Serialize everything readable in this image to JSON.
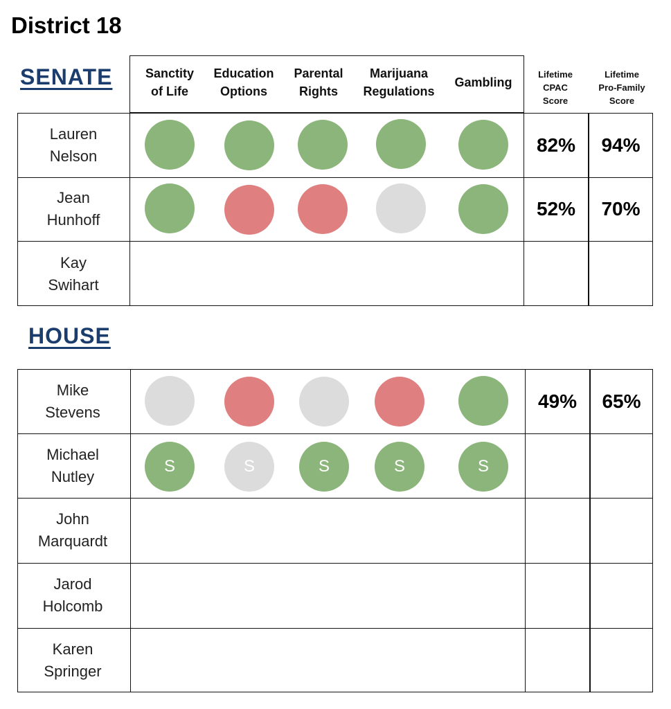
{
  "title": "District 18",
  "senate": {
    "heading": "SENATE",
    "columns": [
      {
        "line1": "Sanctity",
        "line2": "of Life"
      },
      {
        "line1": "Education",
        "line2": "Options"
      },
      {
        "line1": "Parental",
        "line2": "Rights"
      },
      {
        "line1": "Marijuana",
        "line2": "Regulations"
      },
      {
        "line1": "Gambling",
        "line2": ""
      }
    ],
    "cpac_header": {
      "line1": "Lifetime",
      "line2": "CPAC",
      "line3": "Score"
    },
    "profamily_header": {
      "line1": "Lifetime",
      "line2": "Pro-Family",
      "line3": "Score"
    },
    "rows": [
      {
        "first": "Lauren",
        "last": "Nelson",
        "votes": [
          "green",
          "green",
          "green",
          "green",
          "green"
        ],
        "marks": [
          "",
          "",
          "",
          "",
          ""
        ],
        "cpac": "82%",
        "profamily": "94%"
      },
      {
        "first": "Jean",
        "last": "Hunhoff",
        "votes": [
          "green",
          "red",
          "red",
          "gray",
          "green"
        ],
        "marks": [
          "",
          "",
          "",
          "",
          ""
        ],
        "cpac": "52%",
        "profamily": "70%"
      },
      {
        "first": "Kay",
        "last": "Swihart",
        "votes": [],
        "marks": [],
        "cpac": "",
        "profamily": ""
      }
    ]
  },
  "house": {
    "heading": "HOUSE",
    "rows": [
      {
        "first": "Mike",
        "last": "Stevens",
        "votes": [
          "gray",
          "red",
          "gray",
          "red",
          "green"
        ],
        "marks": [
          "",
          "",
          "",
          "",
          ""
        ],
        "cpac": "49%",
        "profamily": "65%"
      },
      {
        "first": "Michael",
        "last": "Nutley",
        "votes": [
          "green",
          "gray",
          "green",
          "green",
          "green"
        ],
        "marks": [
          "S",
          "S",
          "S",
          "S",
          "S"
        ],
        "cpac": "",
        "profamily": ""
      },
      {
        "first": "John",
        "last": "Marquardt",
        "votes": [],
        "marks": [],
        "cpac": "",
        "profamily": ""
      },
      {
        "first": "Jarod",
        "last": "Holcomb",
        "votes": [],
        "marks": [],
        "cpac": "",
        "profamily": ""
      },
      {
        "first": "Karen",
        "last": "Springer",
        "votes": [],
        "marks": [],
        "cpac": "",
        "profamily": ""
      }
    ]
  },
  "colors": {
    "green": "#8bb57a",
    "red": "#df7f7f",
    "gray": "#dcdcdc",
    "heading": "#1b3d6e"
  }
}
